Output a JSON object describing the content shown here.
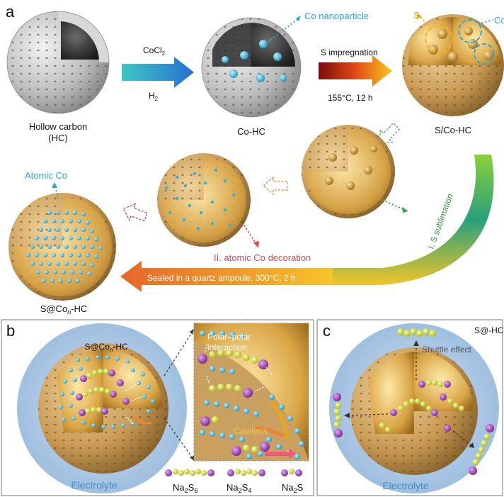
{
  "panel_a": {
    "letter": "a",
    "hollow_carbon_label_1": "Hollow carbon",
    "hollow_carbon_label_2": "(HC)",
    "reagent_top": "CoCl",
    "reagent_top_sub": "2",
    "reagent_bottom": "H",
    "reagent_bottom_sub": "2",
    "co_nanoparticle_label": "Co nanoparticle",
    "co_hc_label": "Co-HC",
    "s_impregnation_label": "S impregnation",
    "condition_label": "155°C, 12 h",
    "s_label": "S",
    "co_cut_label": "Co",
    "s_co_hc_label": "S/Co-HC",
    "sublimation_label": "I. S sublimation",
    "decoration_label": "II. atomic Co decoration",
    "atomic_co_label": "Atomic Co",
    "sealed_label": "Sealed in a quartz ampoule, 300°C, 2 h",
    "product_label_prefix": "S@Co",
    "product_label_sub": "n",
    "product_label_suffix": "-HC"
  },
  "panel_b": {
    "letter": "b",
    "title_prefix": "S@Co",
    "title_sub": "n",
    "title_suffix": "-HC",
    "polar_label_1": "Polar–polar",
    "polar_label_2": "interaction",
    "catalysis_label": "Catalysis",
    "electrolyte_label": "Electrolyte",
    "legend_na2s6_main": "Na",
    "legend_na2s6_sub1": "2",
    "legend_na2s6_s": "S",
    "legend_na2s6_sub2": "6",
    "legend_na2s4_main": "Na",
    "legend_na2s4_sub1": "2",
    "legend_na2s4_s": "S",
    "legend_na2s4_sub2": "4",
    "legend_na2s_main": "Na",
    "legend_na2s_sub1": "2",
    "legend_na2s_s": "S"
  },
  "panel_c": {
    "letter": "c",
    "title": "S@-HC",
    "shuttle_label": "Shuttle effect",
    "electrolyte_label": "Electrolyte"
  },
  "colors": {
    "carbon_shell": "#c9c9c9",
    "gold_shell": "#c99a55",
    "cobalt": "#2fb4d6",
    "sulfur": "#d8e02a",
    "sodium": "#9b3fae",
    "electrolyte": "#b9d2ea",
    "co_label": "#2aa8d8",
    "sublimation": "#3aa84a",
    "decoration": "#e0464e",
    "sealed_arrow": "#e8852a"
  }
}
